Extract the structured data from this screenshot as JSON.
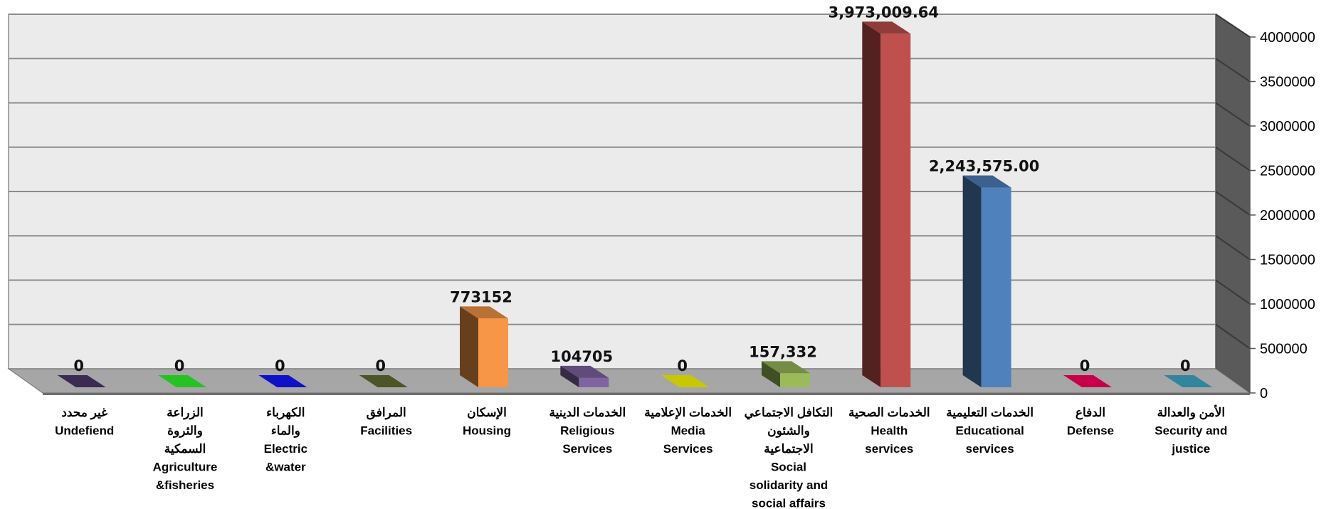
{
  "chart_data": {
    "type": "bar",
    "ylim": [
      0,
      4000000
    ],
    "y_ticks": [
      "0",
      "500000",
      "1000000",
      "1500000",
      "2000000",
      "2500000",
      "3000000",
      "3500000",
      "4000000"
    ],
    "grid": true,
    "legend": "none",
    "categories": [
      {
        "lines": [
          "غير محدد",
          "Undefiend"
        ],
        "value": 0,
        "label": "0",
        "color": "#3B2A52"
      },
      {
        "lines": [
          "الزراعة",
          "والثروة",
          "السمكية",
          "Agriculture",
          "&fisheries"
        ],
        "value": 0,
        "label": "0",
        "color": "#22C322"
      },
      {
        "lines": [
          "الكهرباء",
          "والماء",
          "Electric",
          "&water"
        ],
        "value": 0,
        "label": "0",
        "color": "#1010C8"
      },
      {
        "lines": [
          "المرافق",
          "Facilities"
        ],
        "value": 0,
        "label": "0",
        "color": "#4B5526"
      },
      {
        "lines": [
          "الإسكان",
          "Housing"
        ],
        "value": 773152,
        "label": "773152",
        "color": "#F79646"
      },
      {
        "lines": [
          "الخدمات الدينية",
          "Religious",
          "Services"
        ],
        "value": 104705,
        "label": "104705",
        "color": "#8064A2"
      },
      {
        "lines": [
          "الخدمات الإعلامية",
          "Media",
          "Services"
        ],
        "value": 0,
        "label": "0",
        "color": "#C8C800"
      },
      {
        "lines": [
          "التكافل الاجتماعي",
          "والشئون",
          "الاجتماعية",
          "Social",
          "solidarity and",
          "social affairs"
        ],
        "value": 157332,
        "label": "157,332",
        "color": "#9BBB59"
      },
      {
        "lines": [
          "الخدمات الصحية",
          "Health",
          "services"
        ],
        "value": 3973009.64,
        "label": "3,973,009.64",
        "color": "#C0504D"
      },
      {
        "lines": [
          "الخدمات التعليمية",
          "Educational",
          "services"
        ],
        "value": 2243575.0,
        "label": "2,243,575.00",
        "color": "#4F81BD"
      },
      {
        "lines": [
          "الدفاع",
          "Defense"
        ],
        "value": 0,
        "label": "0",
        "color": "#C8004B"
      },
      {
        "lines": [
          "الأمن والعدالة",
          "Security and",
          "justice"
        ],
        "value": 0,
        "label": "0",
        "color": "#31859C"
      }
    ]
  }
}
